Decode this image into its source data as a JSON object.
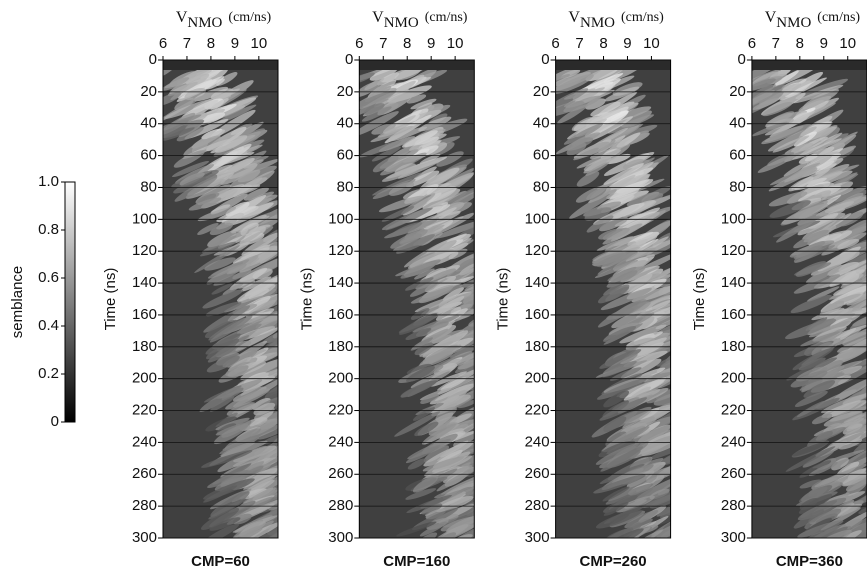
{
  "chart_data": [
    {
      "type": "colorbar",
      "ylabel": "semblance",
      "ylim": [
        0,
        1
      ],
      "yticks": [
        0,
        0.2,
        0.4,
        0.6,
        0.8,
        {
          "value": 1,
          "label": "1.0"
        }
      ]
    },
    {
      "type": "heatmap",
      "title": "CMP=60",
      "xlabel": {
        "symbol": "V",
        "subscript": "NMO",
        "unit": "(cm/ns)"
      },
      "ylabel": "Time (ns)",
      "xlim": [
        6,
        10.8
      ],
      "xticks": [
        6,
        7,
        8,
        9,
        10
      ],
      "ylim": [
        0,
        300
      ],
      "y_inverted": true,
      "yticks": [
        0,
        20,
        40,
        60,
        80,
        100,
        120,
        140,
        160,
        180,
        200,
        220,
        240,
        260,
        280,
        300
      ],
      "grid": true
    },
    {
      "type": "heatmap",
      "title": "CMP=160",
      "xlabel": {
        "symbol": "V",
        "subscript": "NMO",
        "unit": "(cm/ns)"
      },
      "ylabel": "Time (ns)",
      "xlim": [
        6,
        10.8
      ],
      "xticks": [
        6,
        7,
        8,
        9,
        10
      ],
      "ylim": [
        0,
        300
      ],
      "y_inverted": true,
      "yticks": [
        0,
        20,
        40,
        60,
        80,
        100,
        120,
        140,
        160,
        180,
        200,
        220,
        240,
        260,
        280,
        300
      ],
      "grid": true
    },
    {
      "type": "heatmap",
      "title": "CMP=260",
      "xlabel": {
        "symbol": "V",
        "subscript": "NMO",
        "unit": "(cm/ns)"
      },
      "ylabel": "Time (ns)",
      "xlim": [
        6,
        10.8
      ],
      "xticks": [
        6,
        7,
        8,
        9,
        10
      ],
      "ylim": [
        0,
        300
      ],
      "y_inverted": true,
      "yticks": [
        0,
        20,
        40,
        60,
        80,
        100,
        120,
        140,
        160,
        180,
        200,
        220,
        240,
        260,
        280,
        300
      ],
      "grid": true
    },
    {
      "type": "heatmap",
      "title": "CMP=360",
      "xlabel": {
        "symbol": "V",
        "subscript": "NMO",
        "unit": "(cm/ns)"
      },
      "ylabel": "Time (ns)",
      "xlim": [
        6,
        10.8
      ],
      "xticks": [
        6,
        7,
        8,
        9,
        10
      ],
      "ylim": [
        0,
        300
      ],
      "y_inverted": true,
      "yticks": [
        0,
        20,
        40,
        60,
        80,
        100,
        120,
        140,
        160,
        180,
        200,
        220,
        240,
        260,
        280,
        300
      ],
      "grid": true
    }
  ]
}
